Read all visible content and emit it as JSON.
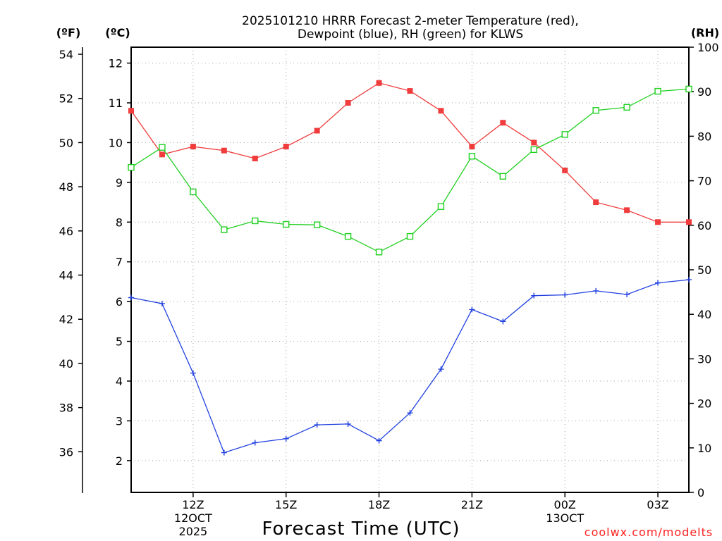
{
  "chart_data": {
    "type": "line",
    "title": "2025101210 HRRR Forecast 2-meter Temperature (red),",
    "subtitle": "Dewpoint (blue), RH (green) for KLWS",
    "xlabel": "Forecast Time (UTC)",
    "credit": "coolwx.com/modelts",
    "units": {
      "fahrenheit": "(ºF)",
      "celsius": "(ºC)",
      "rh": "(RH)"
    },
    "x_hours": [
      10,
      11,
      12,
      13,
      14,
      15,
      16,
      17,
      18,
      19,
      20,
      21,
      22,
      23,
      24,
      25,
      26,
      27,
      28
    ],
    "x_ticks": [
      {
        "hour": 12,
        "lines": [
          "12Z",
          "12OCT",
          "2025"
        ]
      },
      {
        "hour": 15,
        "lines": [
          "15Z"
        ]
      },
      {
        "hour": 18,
        "lines": [
          "18Z"
        ]
      },
      {
        "hour": 21,
        "lines": [
          "21Z"
        ]
      },
      {
        "hour": 24,
        "lines": [
          "00Z",
          "13OCT"
        ]
      },
      {
        "hour": 27,
        "lines": [
          "03Z"
        ]
      }
    ],
    "xlim": [
      10,
      28
    ],
    "celsius_axis": {
      "ticks": [
        "2",
        "3",
        "4",
        "5",
        "6",
        "7",
        "8",
        "9",
        "10",
        "11",
        "12"
      ],
      "ylim": [
        1.2,
        12.4
      ]
    },
    "fahrenheit_axis": {
      "ticks": [
        "36",
        "38",
        "40",
        "42",
        "44",
        "46",
        "48",
        "50",
        "52",
        "54"
      ]
    },
    "rh_axis": {
      "ticks": [
        "0",
        "10",
        "20",
        "30",
        "40",
        "50",
        "60",
        "70",
        "80",
        "90",
        "100"
      ],
      "ylim": [
        0,
        100
      ]
    },
    "series": [
      {
        "name": "Temperature",
        "axis": "C",
        "color": "#f03c3c",
        "marker": "filled-square",
        "values": [
          10.8,
          9.7,
          9.9,
          9.8,
          9.6,
          9.9,
          10.3,
          11.0,
          11.5,
          11.3,
          10.8,
          9.9,
          10.5,
          10.0,
          9.3,
          8.5,
          8.3,
          8.0,
          8.0
        ]
      },
      {
        "name": "Dewpoint",
        "axis": "C",
        "color": "#2040e0",
        "marker": "plus",
        "values": [
          6.1,
          5.95,
          4.2,
          2.2,
          2.45,
          2.55,
          2.9,
          2.92,
          2.5,
          3.2,
          4.3,
          5.8,
          5.5,
          6.15,
          6.17,
          6.27,
          6.18,
          6.47,
          6.55
        ]
      },
      {
        "name": "RH",
        "axis": "RH",
        "color": "#20d020",
        "marker": "open-square",
        "values": [
          73,
          77.5,
          67.5,
          59,
          61,
          60.2,
          60.1,
          57.5,
          54,
          57.5,
          64.2,
          75.5,
          71,
          77,
          80.4,
          85.8,
          86.5,
          90.1,
          90.6
        ]
      }
    ]
  }
}
